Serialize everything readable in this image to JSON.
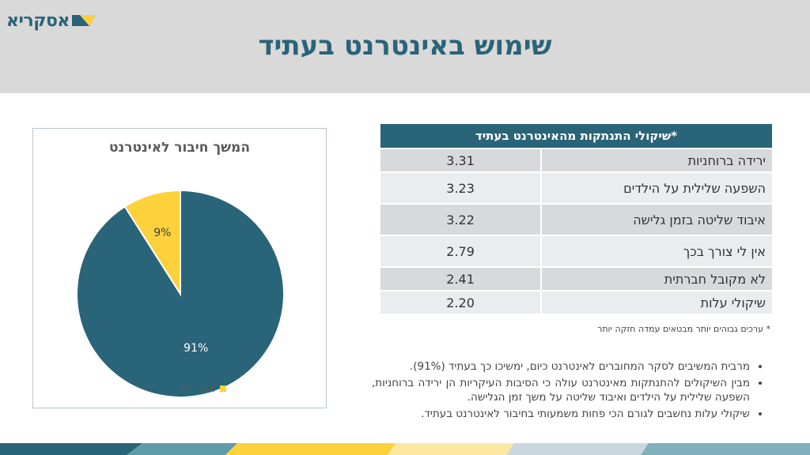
{
  "logo": {
    "text": "אסקריא"
  },
  "title": "שימוש באינטרנט בעתיד",
  "chart_data": {
    "type": "pie",
    "title": "המשך חיבור לאינטרנט",
    "categories": [
      "כן",
      "לא"
    ],
    "values": [
      91,
      9
    ],
    "labels": [
      "91%",
      "9%"
    ],
    "colors": [
      "#2a6478",
      "#fdd13c"
    ],
    "legend": "bottom"
  },
  "table": {
    "header": "*שיקולי התנתקות מהאינטרנט בעתיד",
    "rows": [
      {
        "label": "ירידה ברוחניות",
        "value": "3.31"
      },
      {
        "label": "השפעה שלילית על הילדים",
        "value": "3.23"
      },
      {
        "label": "איבוד שליטה בזמן גלישה",
        "value": "3.22"
      },
      {
        "label": "אין לי צורך בכך",
        "value": "2.79"
      },
      {
        "label": "לא מקובל חברתית",
        "value": "2.41"
      },
      {
        "label": "שיקולי עלות",
        "value": "2.20"
      }
    ],
    "footnote": "* ערכים גבוהים יותר מבטאים עמדה חזקה יותר"
  },
  "bullets": [
    "מרבית המשיבים לסקר המחוברים לאינטרנט כיום, ימשיכו כך בעתיד (91%).",
    "מבין השיקולים להתנתקות מאינטרנט עולה כי הסיבות העיקריות הן ירידה ברוחניות, השפעה שלילית על הילדים ואיבוד שליטה על משך זמן הגלישה.",
    "שיקולי עלות נחשבים לגורם הכי פחות משמעותי בחיבור לאינטרנט בעתיד."
  ]
}
